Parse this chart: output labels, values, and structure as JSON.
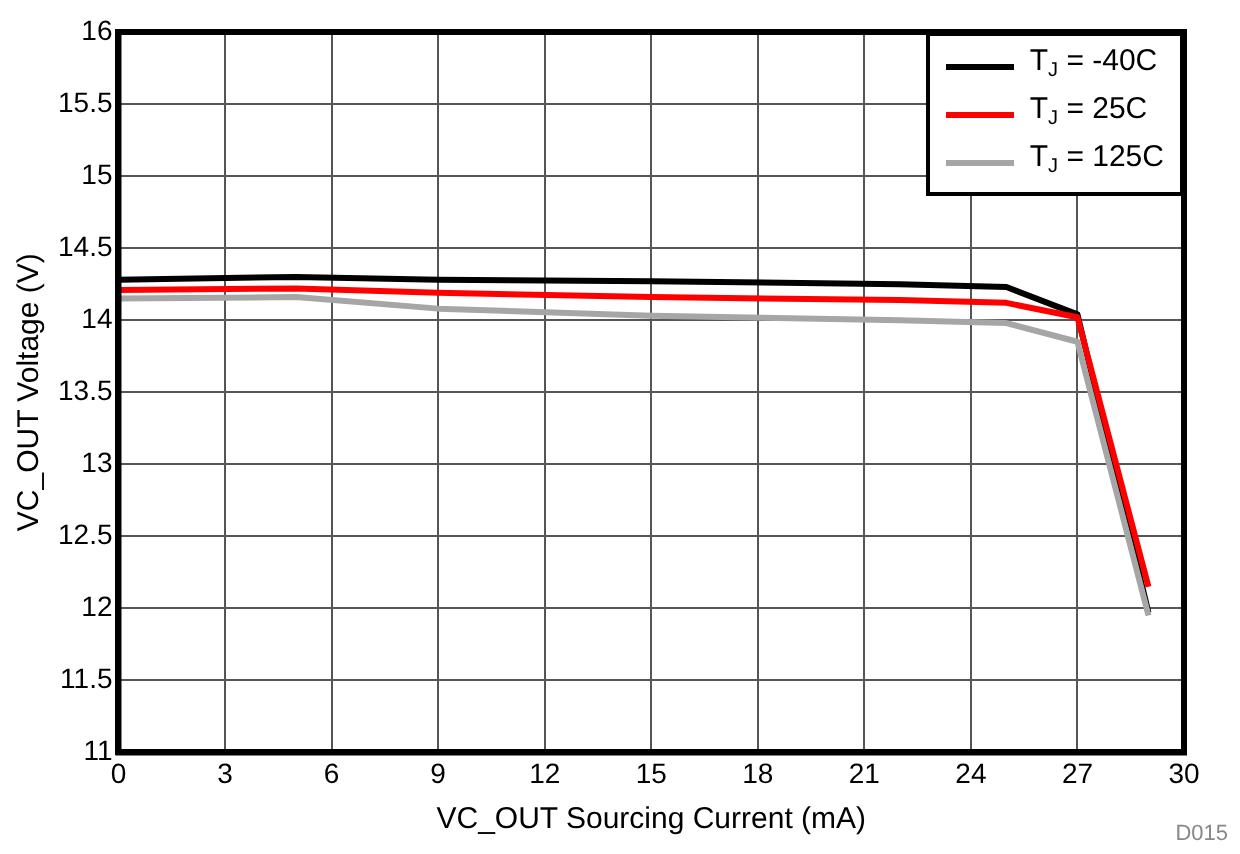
{
  "chart_data": {
    "type": "line",
    "xlabel": "VC_OUT Sourcing Current (mA)",
    "ylabel": "VC_OUT Voltage (V)",
    "x": [
      0,
      5,
      9,
      15,
      22,
      25,
      27,
      29
    ],
    "series": [
      {
        "name": "T$_{J}$ = -40C",
        "color": "#000000",
        "values": [
          14.28,
          14.3,
          14.28,
          14.27,
          14.25,
          14.23,
          14.04,
          11.97
        ]
      },
      {
        "name": "T$_{J}$ = 25C",
        "color": "#ff0000",
        "values": [
          14.21,
          14.22,
          14.19,
          14.16,
          14.14,
          14.12,
          14.02,
          12.15
        ]
      },
      {
        "name": "T$_{J}$ = 125C",
        "color": "#a6a6a6",
        "values": [
          14.15,
          14.16,
          14.08,
          14.03,
          14.0,
          13.98,
          13.85,
          11.95
        ]
      }
    ],
    "xlim": [
      0,
      30
    ],
    "xticks": [
      0,
      3,
      6,
      9,
      12,
      15,
      18,
      21,
      24,
      27,
      30
    ],
    "ylim": [
      11,
      16
    ],
    "yticks": [
      11,
      11.5,
      12,
      12.5,
      13,
      13.5,
      14,
      14.5,
      15,
      15.5,
      16
    ],
    "grid": true,
    "legend": "top right",
    "marker": "none",
    "line_style": "solid",
    "annotations": [
      "D015"
    ]
  }
}
